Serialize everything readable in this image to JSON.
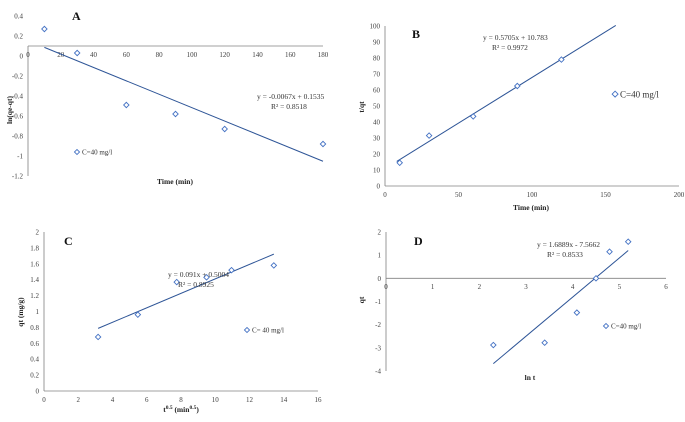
{
  "chart_data": [
    {
      "panel": "A",
      "type": "scatter",
      "title": "A",
      "xlabel": "Time (min)",
      "ylabel": "ln(qe-qt)",
      "xlim": [
        0,
        180
      ],
      "ylim": [
        -1.2,
        0.4
      ],
      "xticks": [
        "0",
        "20",
        "40",
        "60",
        "80",
        "100",
        "120",
        "140",
        "160",
        "180"
      ],
      "yticks": [
        "0.4",
        "0.2",
        "0",
        "-0.2",
        "-0.4",
        "-0.6",
        "-0.8",
        "-1",
        "-1.2"
      ],
      "x": [
        10,
        30,
        60,
        90,
        120,
        180
      ],
      "y": [
        0.27,
        0.03,
        -0.49,
        -0.58,
        -0.73,
        -0.88
      ],
      "trendline": {
        "slope": -0.0067,
        "intercept": 0.1535
      },
      "equation": "y = -0.0067x + 0.1535",
      "r2": "R² = 0.8518",
      "legend": "C=40 mg/l"
    },
    {
      "panel": "B",
      "type": "scatter",
      "title": "B",
      "xlabel": "Time (min)",
      "ylabel": "t/qt",
      "xlim": [
        0,
        200
      ],
      "ylim": [
        0,
        100
      ],
      "xticks": [
        "0",
        "50",
        "100",
        "150",
        "200"
      ],
      "yticks": [
        "100",
        "90",
        "80",
        "70",
        "60",
        "50",
        "40",
        "30",
        "20",
        "10",
        "0"
      ],
      "x": [
        10,
        30,
        60,
        90,
        120
      ],
      "y": [
        14.5,
        31.5,
        43.5,
        62.5,
        79
      ],
      "trendline": {
        "slope": 0.5705,
        "intercept": 10.783
      },
      "equation": "y = 0.5705x + 10.783",
      "r2": "R² = 0.9972",
      "legend": "C=40 mg/l"
    },
    {
      "panel": "C",
      "type": "scatter",
      "title": "C",
      "xlabel": "t0.5 (min0.5)",
      "ylabel": "qt (mg/g)",
      "xlim": [
        0,
        16
      ],
      "ylim": [
        0,
        2
      ],
      "xticks": [
        "0",
        "2",
        "4",
        "6",
        "8",
        "10",
        "12",
        "14",
        "16"
      ],
      "yticks": [
        "2",
        "1.8",
        "1.6",
        "1.4",
        "1.2",
        "1",
        "0.8",
        "0.6",
        "0.4",
        "0.2",
        "0"
      ],
      "x": [
        3.16,
        5.48,
        7.75,
        9.49,
        10.95,
        13.42
      ],
      "y": [
        0.68,
        0.96,
        1.37,
        1.43,
        1.52,
        1.58
      ],
      "trendline": {
        "slope": 0.091,
        "intercept": 0.5004
      },
      "equation": "y = 0.091x + 0.5004",
      "r2": "R² = 0.8925",
      "legend": "C= 40 mg/l"
    },
    {
      "panel": "D",
      "type": "scatter",
      "title": "D",
      "xlabel": "ln t",
      "ylabel": "qt",
      "xlim": [
        0,
        6
      ],
      "ylim": [
        -4,
        2
      ],
      "xticks": [
        "0",
        "1",
        "2",
        "3",
        "4",
        "5",
        "6"
      ],
      "yticks": [
        "2",
        "1",
        "0",
        "-1",
        "-2",
        "-3",
        "-4"
      ],
      "x": [
        2.3,
        3.4,
        4.09,
        4.5,
        4.79,
        5.19
      ],
      "y": [
        -2.88,
        -2.78,
        -1.48,
        0.0,
        1.15,
        1.58
      ],
      "trendline": {
        "slope": 1.6889,
        "intercept": -7.5662
      },
      "equation": "y = 1.6889x - 7.5662",
      "r2": "R² = 0.8533",
      "legend": "C=40 mg/l"
    }
  ],
  "colors": {
    "marker": "#4472C4",
    "line": "#2E5597",
    "axis": "#808080"
  }
}
